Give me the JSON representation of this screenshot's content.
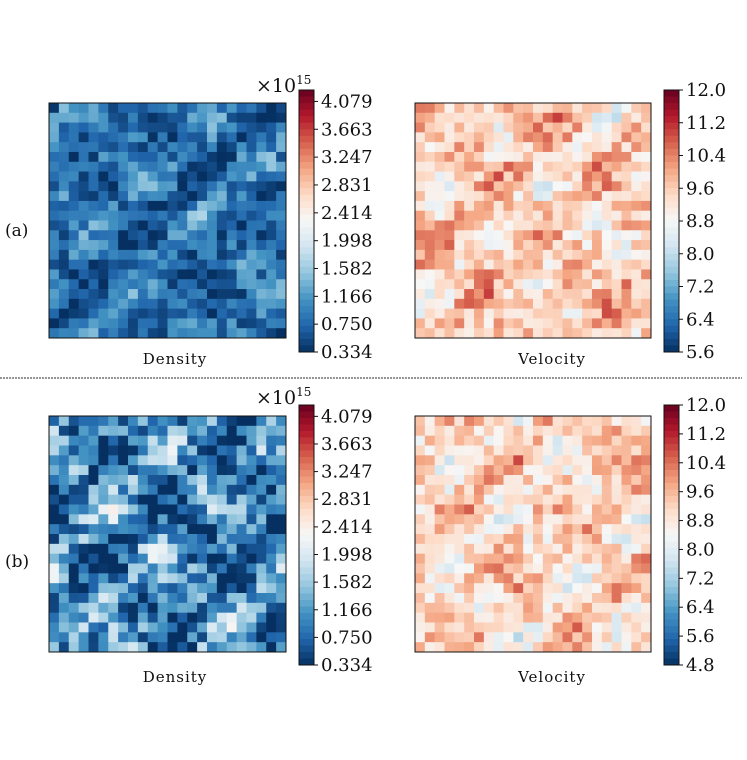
{
  "chart_data": [
    {
      "type": "heatmap",
      "row_label": "(a)",
      "caption": "Density",
      "colormap": "RdBu_r",
      "colorbar_multiplier": "×10",
      "colorbar_exponent": "15",
      "colorbar_ticks": [
        "0.334",
        "0.750",
        "1.166",
        "1.582",
        "1.998",
        "2.414",
        "2.831",
        "3.247",
        "3.663",
        "4.079"
      ],
      "value_range": [
        0.334,
        4.25
      ],
      "field_mean_fraction": 0.12,
      "field_variation": 0.18
    },
    {
      "type": "heatmap",
      "row_label": "(a)",
      "caption": "Velocity",
      "colormap": "RdBu_r",
      "colorbar_ticks": [
        "5.6",
        "6.4",
        "7.2",
        "8.0",
        "8.8",
        "9.6",
        "10.4",
        "11.2",
        "12.0"
      ],
      "value_range": [
        5.6,
        12.0
      ],
      "field_mean_fraction": 0.62,
      "field_variation": 0.2
    },
    {
      "type": "heatmap",
      "row_label": "(b)",
      "caption": "Density",
      "colormap": "RdBu_r",
      "colorbar_multiplier": "×10",
      "colorbar_exponent": "15",
      "colorbar_ticks": [
        "0.334",
        "0.750",
        "1.166",
        "1.582",
        "1.998",
        "2.414",
        "2.831",
        "3.247",
        "3.663",
        "4.079"
      ],
      "value_range": [
        0.334,
        4.25
      ],
      "field_mean_fraction": 0.16,
      "field_variation": 0.3
    },
    {
      "type": "heatmap",
      "row_label": "(b)",
      "caption": "Velocity",
      "colormap": "RdBu_r",
      "colorbar_ticks": [
        "4.8",
        "5.6",
        "6.4",
        "7.2",
        "8.0",
        "8.8",
        "9.6",
        "10.4",
        "11.2",
        "12.0"
      ],
      "value_range": [
        4.8,
        12.0
      ],
      "field_mean_fraction": 0.6,
      "field_variation": 0.2
    }
  ],
  "colors": {
    "rdbu_r": [
      "#053061",
      "#2166ac",
      "#4393c3",
      "#92c5de",
      "#d1e5f0",
      "#f7f7f7",
      "#fddbc7",
      "#f4a582",
      "#d6604d",
      "#b2182b",
      "#67001f"
    ],
    "frame": "#111111",
    "divider": "#555555"
  }
}
